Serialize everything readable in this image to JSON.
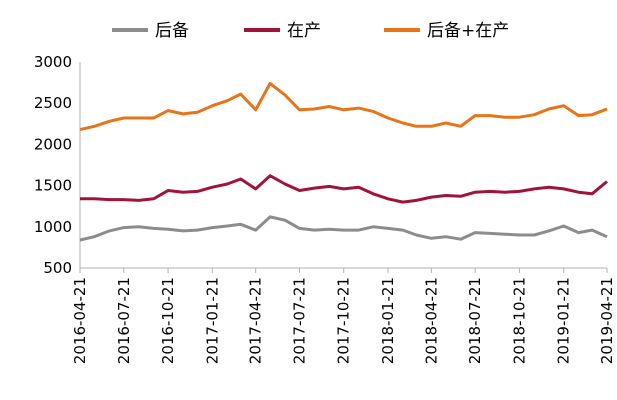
{
  "colors": {
    "backup": "#8c8c8c",
    "active": "#a0143c",
    "total": "#e8741a",
    "axis": "#b0b0b0"
  },
  "chart_data": {
    "type": "line",
    "title": "",
    "xlabel": "",
    "ylabel": "",
    "ylim": [
      500,
      3000
    ],
    "y_ticks": [
      500,
      1000,
      1500,
      2000,
      2500,
      3000
    ],
    "x_ticks": [
      "2016-04-21",
      "2016-07-21",
      "2016-10-21",
      "2017-01-21",
      "2017-04-21",
      "2017-07-21",
      "2017-10-21",
      "2018-01-21",
      "2018-04-21",
      "2018-07-21",
      "2018-10-21",
      "2019-01-21",
      "2019-04-21"
    ],
    "grid": false,
    "legend": "top",
    "x": [
      "2016-04-21",
      "2016-05-21",
      "2016-06-21",
      "2016-07-21",
      "2016-08-21",
      "2016-09-21",
      "2016-10-21",
      "2016-11-21",
      "2016-12-21",
      "2017-01-21",
      "2017-02-21",
      "2017-03-21",
      "2017-04-21",
      "2017-05-21",
      "2017-06-21",
      "2017-07-21",
      "2017-08-21",
      "2017-09-21",
      "2017-10-21",
      "2017-11-21",
      "2017-12-21",
      "2018-01-21",
      "2018-02-21",
      "2018-03-21",
      "2018-04-21",
      "2018-05-21",
      "2018-06-21",
      "2018-07-21",
      "2018-08-21",
      "2018-09-21",
      "2018-10-21",
      "2018-11-21",
      "2018-12-21",
      "2019-01-21",
      "2019-02-21",
      "2019-03-21",
      "2019-04-21"
    ],
    "series": [
      {
        "name": "后备",
        "color": "#8c8c8c",
        "values": [
          840,
          880,
          950,
          990,
          1000,
          980,
          970,
          950,
          960,
          990,
          1010,
          1030,
          960,
          1120,
          1080,
          980,
          960,
          970,
          960,
          960,
          1000,
          980,
          960,
          900,
          860,
          880,
          850,
          930,
          920,
          910,
          900,
          900,
          950,
          1010,
          930,
          960,
          880
        ]
      },
      {
        "name": "在产",
        "color": "#a0143c",
        "values": [
          1340,
          1340,
          1330,
          1330,
          1320,
          1340,
          1440,
          1420,
          1430,
          1480,
          1520,
          1580,
          1460,
          1620,
          1520,
          1440,
          1470,
          1490,
          1460,
          1480,
          1400,
          1340,
          1300,
          1320,
          1360,
          1380,
          1370,
          1420,
          1430,
          1420,
          1430,
          1460,
          1480,
          1460,
          1420,
          1400,
          1550
        ]
      },
      {
        "name": "后备+在产",
        "color": "#e8741a",
        "values": [
          2180,
          2220,
          2280,
          2320,
          2320,
          2320,
          2410,
          2370,
          2390,
          2470,
          2530,
          2610,
          2420,
          2740,
          2600,
          2420,
          2430,
          2460,
          2420,
          2440,
          2400,
          2320,
          2260,
          2220,
          2220,
          2260,
          2220,
          2350,
          2350,
          2330,
          2330,
          2360,
          2430,
          2470,
          2350,
          2360,
          2430
        ]
      }
    ]
  }
}
